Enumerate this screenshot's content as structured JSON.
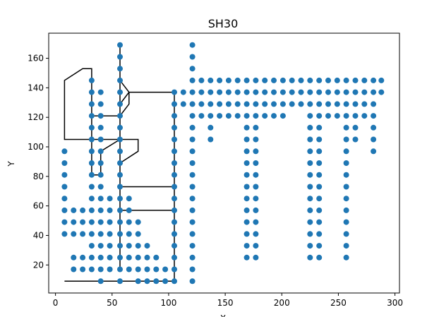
{
  "chart_data": {
    "type": "line",
    "title": "SH30",
    "xlabel": "X",
    "ylabel": "Y",
    "xlim": [
      -6,
      304
    ],
    "ylim": [
      1,
      177
    ],
    "xticks": [
      0,
      50,
      100,
      150,
      200,
      250,
      300
    ],
    "yticks": [
      20,
      40,
      60,
      80,
      100,
      120,
      140,
      160
    ],
    "grid": false,
    "line_color": "#000000",
    "marker_color": "#1f77b4",
    "marker_shape": "circle",
    "route": {
      "name": "",
      "x": [
        8,
        16,
        24,
        32,
        40,
        48,
        40,
        32,
        24,
        16,
        16,
        57,
        65,
        73,
        81,
        89,
        97,
        105,
        105,
        105,
        105,
        105,
        105,
        105,
        105,
        105,
        97,
        89,
        81,
        73,
        65,
        57,
        57,
        57,
        57,
        57,
        57,
        57,
        57,
        57,
        57,
        57,
        57,
        57,
        57,
        57,
        57,
        65,
        57,
        57,
        57,
        57,
        40,
        40,
        40,
        32,
        32,
        32,
        32,
        32,
        32,
        32,
        32,
        32,
        32,
        24,
        8,
        8,
        8,
        8,
        8,
        8,
        16,
        24,
        32,
        40,
        48,
        57,
        65,
        73,
        73,
        57,
        57,
        57,
        57,
        57,
        57,
        57,
        57,
        57,
        57,
        57,
        57,
        57,
        57,
        57,
        57,
        65,
        73,
        81,
        89,
        97,
        105,
        105,
        105,
        105,
        105,
        105,
        105,
        105,
        105,
        105,
        105,
        97,
        89,
        81,
        73,
        65,
        65,
        57,
        48,
        40,
        32
      ],
      "y": [
        9,
        9,
        9,
        9,
        9,
        9,
        9,
        9,
        9,
        9,
        9,
        9,
        9,
        9,
        9,
        9,
        9,
        9,
        17,
        25,
        33,
        41,
        49,
        57,
        65,
        73,
        73,
        73,
        73,
        73,
        73,
        73,
        81,
        89,
        97,
        105,
        113,
        121,
        129,
        137,
        145,
        153,
        161,
        169,
        161,
        153,
        145,
        137,
        129,
        121,
        113,
        105,
        97,
        89,
        81,
        81,
        89,
        97,
        105,
        113,
        121,
        129,
        137,
        145,
        153,
        153,
        145,
        137,
        129,
        121,
        113,
        105,
        105,
        105,
        105,
        105,
        105,
        105,
        105,
        105,
        97,
        89,
        81,
        73,
        65,
        57,
        49,
        41,
        33,
        25,
        17,
        17,
        25,
        33,
        41,
        49,
        57,
        57,
        57,
        57,
        57,
        57,
        57,
        65,
        73,
        81,
        89,
        97,
        105,
        113,
        121,
        129,
        137,
        137,
        137,
        137,
        137,
        137,
        129,
        121,
        121,
        121,
        121
      ]
    },
    "points": {
      "x": [
        8,
        8,
        8,
        8,
        8,
        8,
        8,
        8,
        16,
        16,
        16,
        16,
        16,
        24,
        24,
        24,
        24,
        24,
        32,
        32,
        32,
        32,
        32,
        32,
        32,
        32,
        32,
        32,
        32,
        32,
        32,
        32,
        32,
        32,
        32,
        40,
        40,
        40,
        40,
        40,
        40,
        40,
        40,
        40,
        40,
        40,
        40,
        40,
        40,
        40,
        40,
        40,
        48,
        48,
        48,
        48,
        48,
        48,
        48,
        57,
        57,
        57,
        57,
        57,
        57,
        57,
        57,
        57,
        57,
        57,
        57,
        57,
        57,
        57,
        57,
        57,
        57,
        57,
        57,
        57,
        65,
        65,
        65,
        65,
        65,
        65,
        65,
        73,
        73,
        73,
        73,
        73,
        73,
        81,
        81,
        81,
        81,
        89,
        89,
        89,
        97,
        97,
        105,
        105,
        105,
        105,
        105,
        105,
        105,
        105,
        105,
        105,
        105,
        105,
        105,
        105,
        105,
        105,
        105,
        113,
        113,
        121,
        121,
        121,
        121,
        121,
        121,
        121,
        121,
        121,
        121,
        121,
        121,
        121,
        121,
        121,
        121,
        121,
        121,
        121,
        121,
        121,
        129,
        129,
        129,
        129,
        137,
        137,
        137,
        137,
        137,
        137,
        145,
        145,
        145,
        145,
        153,
        153,
        153,
        153,
        161,
        161,
        161,
        161,
        169,
        169,
        169,
        169,
        169,
        169,
        169,
        169,
        169,
        169,
        169,
        169,
        169,
        169,
        169,
        169,
        177,
        177,
        177,
        177,
        177,
        177,
        177,
        177,
        177,
        177,
        177,
        177,
        177,
        177,
        177,
        177,
        185,
        185,
        185,
        185,
        193,
        193,
        193,
        193,
        201,
        201,
        201,
        201,
        209,
        209,
        209,
        217,
        217,
        217,
        225,
        225,
        225,
        225,
        225,
        225,
        225,
        225,
        225,
        225,
        225,
        225,
        225,
        225,
        225,
        225,
        233,
        233,
        233,
        233,
        233,
        233,
        233,
        233,
        233,
        233,
        233,
        233,
        233,
        233,
        233,
        233,
        241,
        241,
        241,
        241,
        249,
        249,
        249,
        249,
        257,
        257,
        257,
        257,
        257,
        257,
        257,
        257,
        257,
        257,
        257,
        257,
        257,
        257,
        257,
        257,
        265,
        265,
        265,
        265,
        265,
        265,
        273,
        273,
        273,
        273,
        281,
        281,
        281,
        281,
        281,
        281,
        281,
        288,
        288
      ],
      "y": [
        41,
        49,
        57,
        65,
        73,
        81,
        89,
        97,
        17,
        25,
        41,
        49,
        57,
        17,
        25,
        41,
        49,
        57,
        17,
        25,
        33,
        41,
        49,
        57,
        65,
        73,
        81,
        89,
        97,
        105,
        113,
        121,
        129,
        137,
        145,
        9,
        17,
        25,
        33,
        41,
        49,
        57,
        65,
        73,
        81,
        89,
        97,
        105,
        113,
        121,
        129,
        137,
        17,
        25,
        33,
        41,
        49,
        57,
        65,
        9,
        17,
        25,
        33,
        41,
        49,
        57,
        65,
        73,
        81,
        89,
        97,
        105,
        113,
        121,
        129,
        137,
        145,
        153,
        161,
        169,
        17,
        25,
        33,
        41,
        49,
        57,
        65,
        9,
        17,
        25,
        33,
        41,
        49,
        9,
        17,
        25,
        33,
        9,
        17,
        25,
        9,
        17,
        9,
        17,
        25,
        33,
        41,
        49,
        57,
        65,
        73,
        81,
        89,
        97,
        105,
        113,
        121,
        129,
        137,
        129,
        137,
        145,
        137,
        129,
        121,
        113,
        105,
        97,
        89,
        81,
        73,
        65,
        57,
        49,
        41,
        33,
        25,
        17,
        9,
        161,
        169,
        153,
        145,
        137,
        129,
        121,
        145,
        137,
        129,
        121,
        113,
        105,
        145,
        137,
        129,
        121,
        145,
        137,
        129,
        121,
        145,
        137,
        129,
        121,
        145,
        137,
        129,
        121,
        113,
        105,
        97,
        89,
        81,
        73,
        65,
        57,
        49,
        41,
        33,
        25,
        145,
        137,
        129,
        121,
        113,
        105,
        97,
        89,
        81,
        73,
        65,
        57,
        49,
        41,
        33,
        25,
        145,
        137,
        129,
        121,
        145,
        137,
        129,
        121,
        145,
        137,
        129,
        121,
        145,
        137,
        129,
        145,
        137,
        129,
        145,
        137,
        129,
        121,
        113,
        105,
        97,
        89,
        81,
        73,
        65,
        57,
        49,
        41,
        33,
        25,
        145,
        137,
        129,
        121,
        113,
        105,
        97,
        89,
        81,
        73,
        65,
        57,
        49,
        41,
        33,
        25,
        145,
        137,
        129,
        121,
        145,
        137,
        129,
        121,
        145,
        137,
        129,
        121,
        113,
        105,
        97,
        89,
        81,
        73,
        65,
        57,
        49,
        41,
        33,
        25,
        145,
        137,
        129,
        121,
        113,
        105,
        145,
        137,
        129,
        121,
        145,
        137,
        129,
        121,
        113,
        105,
        97,
        145,
        137
      ]
    }
  }
}
